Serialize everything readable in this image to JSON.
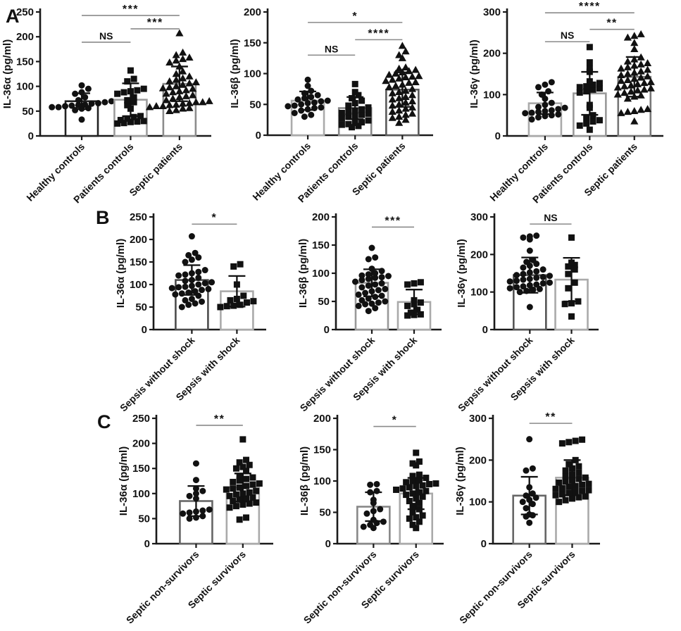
{
  "figure": {
    "panels": [
      {
        "label": "A"
      },
      {
        "label": "B"
      },
      {
        "label": "C"
      }
    ],
    "colors": {
      "marker": "#111111",
      "axis": "#1a1a1a",
      "error_bar": "#111111",
      "sig_line": "#8a8a8a",
      "bar_fill": "#ffffff"
    }
  },
  "chart_data": [
    {
      "panel": "A",
      "type": "scatter",
      "ylabel": "IL-36α (pg/ml)",
      "ylim": [
        0,
        250
      ],
      "yticks": [
        0,
        50,
        100,
        150,
        200,
        250
      ],
      "grid": false,
      "legend": "none",
      "groups": [
        {
          "label": "Healthy controls",
          "marker": "circle",
          "bar_color": "#222222",
          "mean": 70,
          "sd": 16,
          "values": [
            33,
            52,
            55,
            56,
            58,
            58,
            60,
            61,
            62,
            63,
            65,
            66,
            68,
            70,
            72,
            78,
            85,
            88,
            95,
            102
          ]
        },
        {
          "label": "Patients controls",
          "marker": "square",
          "bar_color": "#9c9c9c",
          "mean": 73,
          "sd": 33,
          "values": [
            25,
            26,
            28,
            29,
            30,
            32,
            35,
            38,
            40,
            55,
            62,
            68,
            72,
            78,
            85,
            88,
            90,
            92,
            95,
            110,
            115,
            132
          ]
        },
        {
          "label": "Septic patients",
          "marker": "triangle",
          "bar_color": "#8c8c8c",
          "mean": 105,
          "sd": 35,
          "values": [
            50,
            52,
            55,
            56,
            58,
            60,
            60,
            62,
            63,
            65,
            66,
            68,
            68,
            70,
            72,
            75,
            78,
            80,
            82,
            85,
            88,
            90,
            92,
            95,
            96,
            98,
            100,
            103,
            106,
            108,
            110,
            113,
            116,
            120,
            125,
            130,
            140,
            148,
            152,
            155,
            158,
            163,
            168,
            207
          ]
        }
      ],
      "significance": [
        {
          "group_a": 0,
          "group_b": 2,
          "y": 243,
          "label": "***"
        },
        {
          "group_a": 1,
          "group_b": 2,
          "y": 216,
          "label": "***"
        },
        {
          "group_a": 0,
          "group_b": 1,
          "y": 189,
          "label": "NS"
        }
      ]
    },
    {
      "panel": "A",
      "type": "scatter",
      "ylabel": "IL-36β (pg/ml)",
      "ylim": [
        0,
        200
      ],
      "yticks": [
        0,
        50,
        100,
        150,
        200
      ],
      "grid": false,
      "legend": "none",
      "groups": [
        {
          "label": "Healthy controls",
          "marker": "circle",
          "bar_color": "#ababab",
          "mean": 56,
          "sd": 15,
          "values": [
            30,
            33,
            36,
            40,
            42,
            44,
            45,
            47,
            48,
            50,
            52,
            53,
            55,
            56,
            58,
            60,
            62,
            65,
            68,
            72,
            80,
            90
          ]
        },
        {
          "label": "Patients controls",
          "marker": "square",
          "bar_color": "#888888",
          "mean": 44,
          "sd": 18,
          "values": [
            13,
            15,
            17,
            18,
            20,
            21,
            24,
            27,
            30,
            32,
            33,
            35,
            36,
            38,
            40,
            42,
            45,
            48,
            52,
            56,
            60,
            65,
            70,
            83
          ]
        },
        {
          "label": "Septic patients",
          "marker": "triangle",
          "bar_color": "#5a5a5a",
          "mean": 74,
          "sd": 28,
          "values": [
            20,
            25,
            28,
            30,
            33,
            35,
            38,
            40,
            43,
            45,
            48,
            50,
            53,
            55,
            58,
            60,
            62,
            65,
            68,
            70,
            72,
            75,
            78,
            80,
            82,
            85,
            86,
            88,
            90,
            92,
            94,
            95,
            96,
            98,
            100,
            102,
            104,
            106,
            108,
            110,
            125,
            130,
            136,
            145
          ]
        }
      ],
      "significance": [
        {
          "group_a": 0,
          "group_b": 2,
          "y": 183,
          "label": "*"
        },
        {
          "group_a": 1,
          "group_b": 2,
          "y": 155,
          "label": "****"
        },
        {
          "group_a": 0,
          "group_b": 1,
          "y": 130,
          "label": "NS"
        }
      ]
    },
    {
      "panel": "A",
      "type": "scatter",
      "ylabel": "IL-36γ (pg/ml)",
      "ylim": [
        0,
        300
      ],
      "yticks": [
        0,
        100,
        200,
        300
      ],
      "grid": false,
      "legend": "none",
      "groups": [
        {
          "label": "Healthy controls",
          "marker": "circle",
          "bar_color": "#aaaaaa",
          "mean": 79,
          "sd": 26,
          "values": [
            40,
            45,
            48,
            50,
            52,
            55,
            56,
            58,
            60,
            62,
            65,
            68,
            70,
            75,
            80,
            90,
            100,
            108,
            118,
            124,
            130
          ]
        },
        {
          "label": "Patients controls",
          "marker": "square",
          "bar_color": "#999999",
          "mean": 103,
          "sd": 52,
          "values": [
            15,
            25,
            30,
            35,
            38,
            45,
            50,
            68,
            75,
            105,
            108,
            112,
            115,
            118,
            120,
            124,
            128,
            132,
            155,
            163,
            178,
            215
          ]
        },
        {
          "label": "Septic patients",
          "marker": "triangle",
          "bar_color": "#777777",
          "mean": 143,
          "sd": 48,
          "values": [
            35,
            55,
            58,
            60,
            63,
            65,
            90,
            95,
            98,
            100,
            104,
            107,
            110,
            112,
            115,
            117,
            120,
            122,
            125,
            128,
            130,
            133,
            135,
            138,
            141,
            144,
            147,
            150,
            153,
            156,
            160,
            163,
            166,
            170,
            173,
            176,
            180,
            185,
            190,
            210,
            225,
            238,
            242,
            246
          ]
        }
      ],
      "significance": [
        {
          "group_a": 0,
          "group_b": 2,
          "y": 298,
          "label": "****"
        },
        {
          "group_a": 1,
          "group_b": 2,
          "y": 258,
          "label": "**"
        },
        {
          "group_a": 0,
          "group_b": 1,
          "y": 228,
          "label": "NS"
        }
      ]
    },
    {
      "panel": "B",
      "type": "scatter",
      "ylabel": "IL-36α (pg/ml)",
      "ylim": [
        0,
        250
      ],
      "yticks": [
        0,
        50,
        100,
        150,
        200,
        250
      ],
      "grid": false,
      "legend": "none",
      "groups": [
        {
          "label": "Sepsis without shock",
          "marker": "circle",
          "bar_color": "#4d4d4d",
          "mean": 110,
          "sd": 33,
          "values": [
            50,
            55,
            58,
            62,
            65,
            68,
            75,
            78,
            80,
            82,
            85,
            88,
            90,
            92,
            94,
            95,
            97,
            100,
            103,
            105,
            108,
            110,
            115,
            120,
            122,
            125,
            128,
            132,
            150,
            155,
            160,
            165,
            170,
            207
          ]
        },
        {
          "label": "Sepsis with shock",
          "marker": "square",
          "bar_color": "#aaaaaa",
          "mean": 85,
          "sd": 34,
          "values": [
            50,
            52,
            53,
            55,
            60,
            63,
            65,
            68,
            75,
            100,
            140,
            145
          ]
        }
      ],
      "significance": [
        {
          "group_a": 0,
          "group_b": 1,
          "y": 234,
          "label": "*"
        }
      ]
    },
    {
      "panel": "B",
      "type": "scatter",
      "ylabel": "IL-36β (pg/ml)",
      "ylim": [
        0,
        200
      ],
      "yticks": [
        0,
        50,
        100,
        150,
        200
      ],
      "grid": false,
      "legend": "none",
      "groups": [
        {
          "label": "Sepsis without shock",
          "marker": "circle",
          "bar_color": "#999999",
          "mean": 83,
          "sd": 24,
          "values": [
            33,
            38,
            42,
            45,
            46,
            48,
            50,
            52,
            55,
            58,
            60,
            62,
            65,
            68,
            70,
            72,
            75,
            78,
            80,
            82,
            85,
            88,
            90,
            92,
            93,
            95,
            96,
            98,
            100,
            104,
            108,
            125,
            128,
            145
          ]
        },
        {
          "label": "Sepsis with shock",
          "marker": "square",
          "bar_color": "#aaaaaa",
          "mean": 49,
          "sd": 22,
          "values": [
            25,
            26,
            27,
            30,
            35,
            42,
            45,
            48,
            52,
            80,
            82,
            84
          ]
        }
      ],
      "significance": [
        {
          "group_a": 0,
          "group_b": 1,
          "y": 182,
          "label": "***"
        }
      ]
    },
    {
      "panel": "B",
      "type": "scatter",
      "ylabel": "IL-36γ (pg/ml)",
      "ylim": [
        0,
        300
      ],
      "yticks": [
        0,
        100,
        200,
        300
      ],
      "grid": false,
      "legend": "none",
      "groups": [
        {
          "label": "Sepsis without shock",
          "marker": "circle",
          "bar_color": "#555555",
          "mean": 145,
          "sd": 47,
          "values": [
            60,
            100,
            103,
            106,
            108,
            110,
            113,
            115,
            118,
            120,
            123,
            125,
            128,
            130,
            133,
            135,
            138,
            140,
            143,
            145,
            148,
            152,
            155,
            160,
            165,
            170,
            175,
            180,
            185,
            210,
            240,
            245,
            248,
            250
          ]
        },
        {
          "label": "Sepsis with shock",
          "marker": "square",
          "bar_color": "#aaaaaa",
          "mean": 133,
          "sd": 58,
          "values": [
            35,
            68,
            70,
            75,
            110,
            125,
            148,
            160,
            168,
            172,
            178,
            245
          ]
        }
      ],
      "significance": [
        {
          "group_a": 0,
          "group_b": 1,
          "y": 281,
          "label": "NS"
        }
      ]
    },
    {
      "panel": "C",
      "type": "scatter",
      "ylabel": "IL-36α (pg/ml)",
      "ylim": [
        0,
        250
      ],
      "yticks": [
        0,
        50,
        100,
        150,
        200,
        250
      ],
      "grid": false,
      "legend": "none",
      "groups": [
        {
          "label": "Septic non-survivors",
          "marker": "circle",
          "bar_color": "#666666",
          "mean": 85,
          "sd": 30,
          "values": [
            50,
            52,
            55,
            60,
            62,
            64,
            66,
            68,
            90,
            95,
            100,
            105,
            110,
            127,
            160
          ]
        },
        {
          "label": "Septic survivors",
          "marker": "square",
          "bar_color": "#aaaaaa",
          "mean": 112,
          "sd": 28,
          "values": [
            48,
            52,
            72,
            75,
            78,
            80,
            82,
            85,
            88,
            90,
            92,
            95,
            98,
            100,
            102,
            105,
            108,
            110,
            112,
            115,
            118,
            120,
            123,
            126,
            129,
            132,
            135,
            145,
            150,
            153,
            157,
            162,
            167,
            208
          ]
        }
      ],
      "significance": [
        {
          "group_a": 0,
          "group_b": 1,
          "y": 236,
          "label": "**"
        }
      ]
    },
    {
      "panel": "C",
      "type": "scatter",
      "ylabel": "IL-36β (pg/ml)",
      "ylim": [
        0,
        200
      ],
      "yticks": [
        0,
        50,
        100,
        150,
        200
      ],
      "grid": false,
      "legend": "none",
      "groups": [
        {
          "label": "Septic non-survivors",
          "marker": "circle",
          "bar_color": "#888888",
          "mean": 59,
          "sd": 23,
          "values": [
            25,
            27,
            30,
            33,
            35,
            38,
            48,
            52,
            55,
            65,
            70,
            82,
            84,
            94,
            95
          ]
        },
        {
          "label": "Septic survivors",
          "marker": "square",
          "bar_color": "#aaaaaa",
          "mean": 80,
          "sd": 25,
          "values": [
            25,
            30,
            35,
            40,
            42,
            45,
            50,
            55,
            60,
            65,
            68,
            72,
            75,
            78,
            80,
            82,
            84,
            86,
            88,
            90,
            92,
            93,
            95,
            96,
            98,
            100,
            101,
            105,
            108,
            110,
            125,
            128,
            131,
            145
          ]
        }
      ],
      "significance": [
        {
          "group_a": 0,
          "group_b": 1,
          "y": 187,
          "label": "*"
        }
      ]
    },
    {
      "panel": "C",
      "type": "scatter",
      "ylabel": "IL-36γ (pg/ml)",
      "ylim": [
        0,
        300
      ],
      "yticks": [
        0,
        100,
        200,
        300
      ],
      "grid": false,
      "legend": "none",
      "groups": [
        {
          "label": "Septic non-survivors",
          "marker": "circle",
          "bar_color": "#666666",
          "mean": 115,
          "sd": 45,
          "values": [
            50,
            65,
            68,
            70,
            85,
            95,
            100,
            105,
            110,
            115,
            120,
            135,
            175,
            180,
            250
          ]
        },
        {
          "label": "Septic survivors",
          "marker": "square",
          "bar_color": "#aaaaaa",
          "mean": 158,
          "sd": 42,
          "values": [
            100,
            104,
            108,
            111,
            113,
            116,
            118,
            121,
            123,
            126,
            128,
            131,
            133,
            136,
            138,
            141,
            143,
            146,
            149,
            151,
            155,
            158,
            161,
            165,
            170,
            175,
            180,
            185,
            190,
            200,
            240,
            243,
            246,
            249
          ]
        }
      ],
      "significance": [
        {
          "group_a": 0,
          "group_b": 1,
          "y": 288,
          "label": "**"
        }
      ]
    }
  ]
}
